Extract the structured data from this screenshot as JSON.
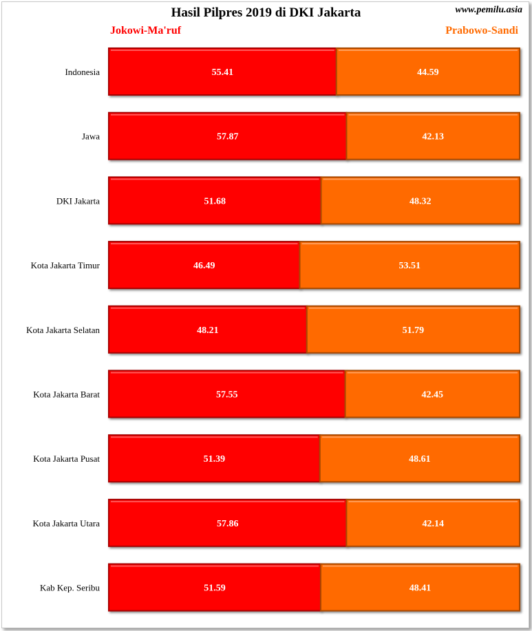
{
  "title": "Hasil Pilpres 2019 di DKI Jakarta",
  "source": "www.pemilu.asia",
  "colors": {
    "series_a": "#ff0000",
    "series_a_border": "#a80000",
    "series_b": "#ff6a00",
    "series_b_border": "#a84a00",
    "legend_a": "#ff0000",
    "legend_b": "#ff6a00"
  },
  "chart_data": {
    "type": "bar",
    "orientation": "horizontal",
    "stacked": true,
    "title": "Hasil Pilpres 2019 di DKI Jakarta",
    "xlim": [
      0,
      100
    ],
    "grid": false,
    "legend": "top",
    "categories": [
      "Indonesia",
      "Jawa",
      "DKI Jakarta",
      "Kota Jakarta Timur",
      "Kota Jakarta Selatan",
      "Kota Jakarta Barat",
      "Kota Jakarta Pusat",
      "Kota Jakarta Utara",
      "Kab Kep. Seribu"
    ],
    "series": [
      {
        "name": "Jokowi-Ma'ruf",
        "values": [
          55.41,
          57.87,
          51.68,
          46.49,
          48.21,
          57.55,
          51.39,
          57.86,
          51.59
        ]
      },
      {
        "name": "Prabowo-Sandi",
        "values": [
          44.59,
          42.13,
          48.32,
          53.51,
          51.79,
          42.45,
          48.61,
          42.14,
          48.41
        ]
      }
    ]
  }
}
